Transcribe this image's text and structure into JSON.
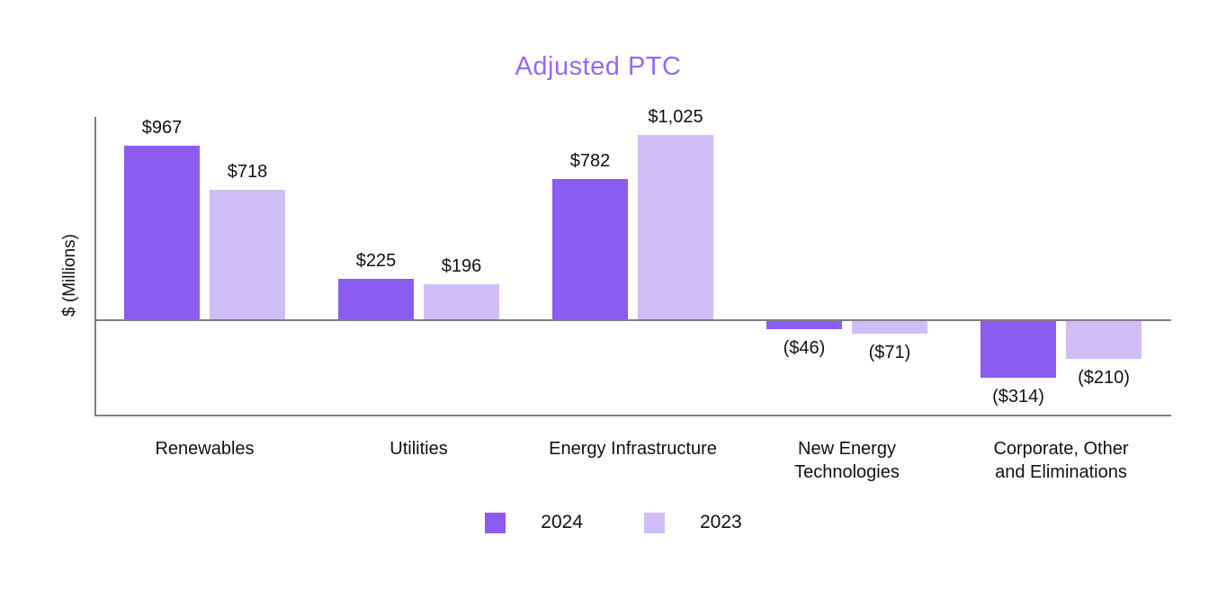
{
  "chart_data": {
    "type": "bar",
    "title": "Adjusted PTC",
    "ylabel": "$ (Millions)",
    "xlabel": "",
    "grid": false,
    "legend_position": "bottom",
    "ylim": [
      -540,
      1125
    ],
    "units": "USD millions",
    "categories": [
      "Renewables",
      "Utilities",
      "Energy Infrastructure",
      "New Energy Technologies",
      "Corporate, Other and Eliminations"
    ],
    "category_display_lines": [
      [
        "Renewables"
      ],
      [
        "Utilities"
      ],
      [
        "Energy Infrastructure"
      ],
      [
        "New Energy",
        "Technologies"
      ],
      [
        "Corporate, Other",
        "and Eliminations"
      ]
    ],
    "series": [
      {
        "name": "2024",
        "color": "#8A5CF0",
        "values": [
          967,
          225,
          782,
          -46,
          -314
        ],
        "labels": [
          "$967",
          "$225",
          "$782",
          "($46)",
          "($314)"
        ]
      },
      {
        "name": "2023",
        "color": "#D0BEF8",
        "values": [
          718,
          196,
          1025,
          -71,
          -210
        ],
        "labels": [
          "$718",
          "$196",
          "$1,025",
          "($71)",
          "($210)"
        ]
      }
    ]
  },
  "colors": {
    "title": "#9669F2",
    "axis": "#7F7F7F",
    "label_text": "#111111"
  }
}
